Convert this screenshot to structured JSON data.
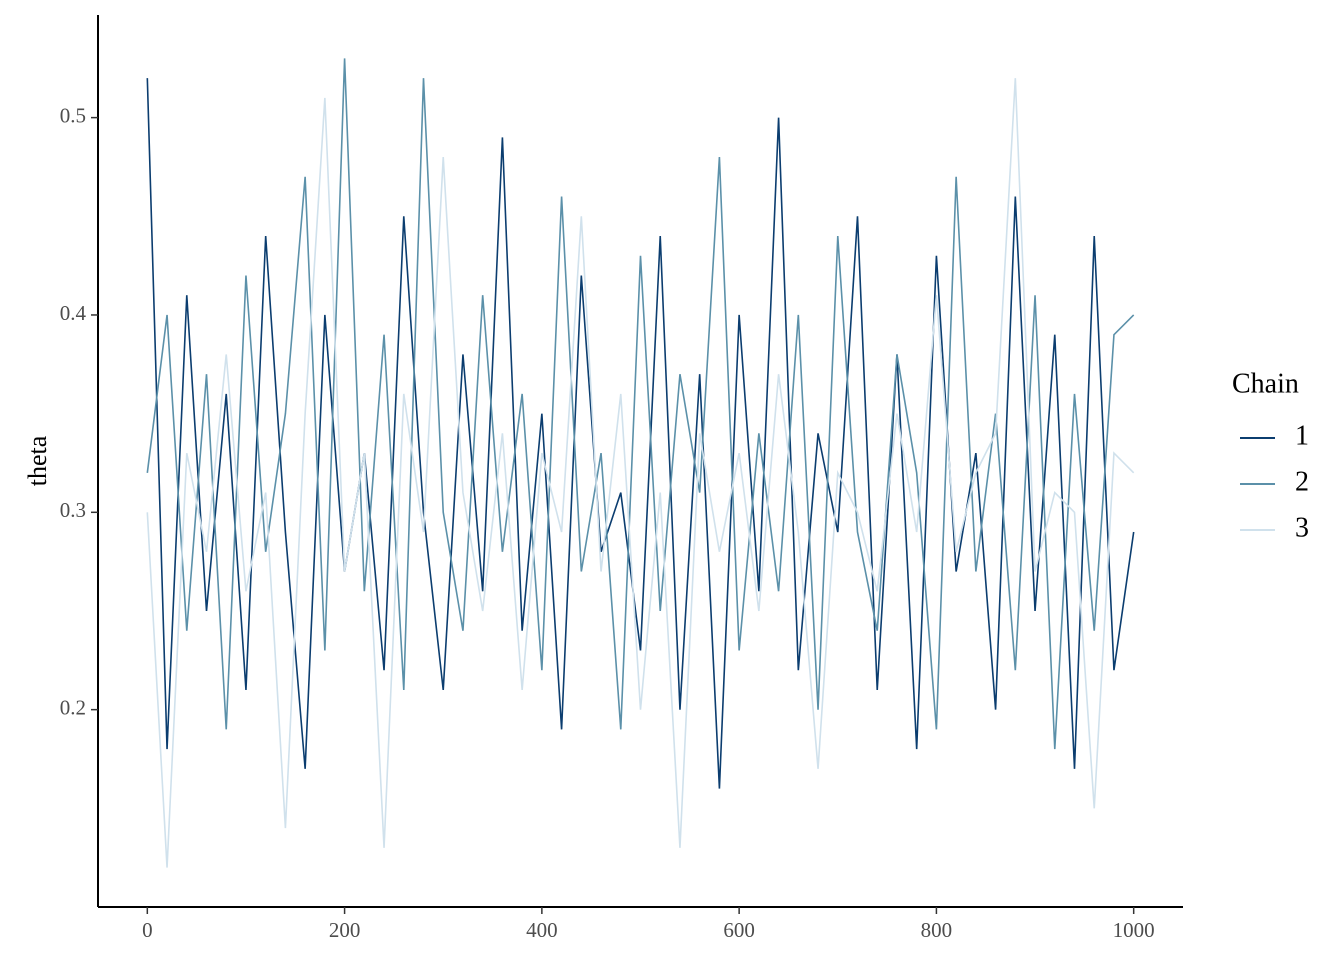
{
  "chart_data": {
    "type": "line",
    "y_label": "theta",
    "legend_title": "Chain",
    "legend_position": "right",
    "grid": false,
    "x": [
      0,
      20,
      40,
      60,
      80,
      100,
      120,
      140,
      160,
      180,
      200,
      220,
      240,
      260,
      280,
      300,
      320,
      340,
      360,
      380,
      400,
      420,
      440,
      460,
      480,
      500,
      520,
      540,
      560,
      580,
      600,
      620,
      640,
      660,
      680,
      700,
      720,
      740,
      760,
      780,
      800,
      820,
      840,
      860,
      880,
      900,
      920,
      940,
      960,
      980,
      1000
    ],
    "series": [
      {
        "name": "1",
        "color": "#0b3d6f",
        "values": [
          0.52,
          0.18,
          0.41,
          0.25,
          0.36,
          0.21,
          0.44,
          0.29,
          0.17,
          0.4,
          0.27,
          0.33,
          0.22,
          0.45,
          0.3,
          0.21,
          0.38,
          0.26,
          0.49,
          0.24,
          0.35,
          0.19,
          0.42,
          0.28,
          0.31,
          0.23,
          0.44,
          0.2,
          0.37,
          0.16,
          0.4,
          0.26,
          0.5,
          0.22,
          0.34,
          0.29,
          0.45,
          0.21,
          0.38,
          0.18,
          0.43,
          0.27,
          0.33,
          0.2,
          0.46,
          0.25,
          0.39,
          0.17,
          0.44,
          0.22,
          0.29
        ]
      },
      {
        "name": "2",
        "color": "#5b90a9",
        "values": [
          0.32,
          0.4,
          0.24,
          0.37,
          0.19,
          0.42,
          0.28,
          0.35,
          0.47,
          0.23,
          0.53,
          0.26,
          0.39,
          0.21,
          0.52,
          0.3,
          0.24,
          0.41,
          0.28,
          0.36,
          0.22,
          0.46,
          0.27,
          0.33,
          0.19,
          0.43,
          0.25,
          0.37,
          0.31,
          0.48,
          0.23,
          0.34,
          0.26,
          0.4,
          0.2,
          0.44,
          0.29,
          0.24,
          0.38,
          0.32,
          0.19,
          0.47,
          0.27,
          0.35,
          0.22,
          0.41,
          0.18,
          0.36,
          0.24,
          0.39,
          0.4
        ]
      },
      {
        "name": "3",
        "color": "#d0e1ec",
        "values": [
          0.3,
          0.12,
          0.33,
          0.28,
          0.38,
          0.26,
          0.31,
          0.14,
          0.35,
          0.51,
          0.27,
          0.33,
          0.13,
          0.36,
          0.29,
          0.48,
          0.31,
          0.25,
          0.34,
          0.21,
          0.33,
          0.29,
          0.45,
          0.27,
          0.36,
          0.2,
          0.31,
          0.13,
          0.34,
          0.28,
          0.33,
          0.25,
          0.37,
          0.29,
          0.17,
          0.32,
          0.3,
          0.26,
          0.35,
          0.29,
          0.41,
          0.28,
          0.32,
          0.34,
          0.52,
          0.27,
          0.31,
          0.3,
          0.15,
          0.33,
          0.32
        ]
      }
    ],
    "xlim": [
      -50,
      1050
    ],
    "xticks": [
      0,
      200,
      400,
      600,
      800,
      1000
    ],
    "ylim": [
      0.1,
      0.552
    ],
    "yticks": [
      0.2,
      0.3,
      0.4,
      0.5
    ]
  }
}
